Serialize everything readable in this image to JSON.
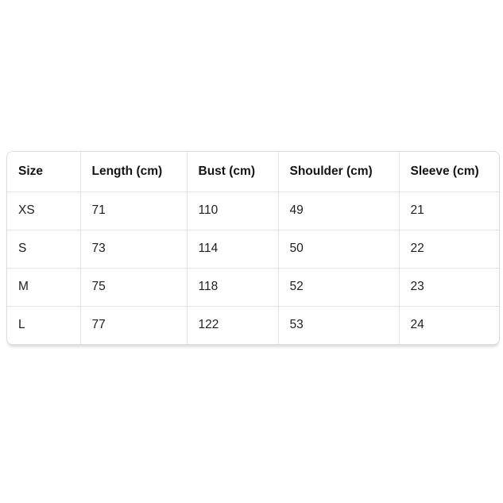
{
  "page": {
    "background_color": "#ffffff",
    "card_border_color": "#dcdcdc",
    "grid_line_color": "#e3e3e6",
    "text_color": "#1d1d1f",
    "header_text_color": "#141414"
  },
  "chart_data": {
    "type": "table",
    "title": "",
    "columns": [
      "Size",
      "Length (cm)",
      "Bust (cm)",
      "Shoulder (cm)",
      "Sleeve (cm)"
    ],
    "rows": [
      [
        "XS",
        "71",
        "110",
        "49",
        "21"
      ],
      [
        "S",
        "73",
        "114",
        "50",
        "22"
      ],
      [
        "M",
        "75",
        "118",
        "52",
        "23"
      ],
      [
        "L",
        "77",
        "122",
        "53",
        "24"
      ]
    ]
  }
}
